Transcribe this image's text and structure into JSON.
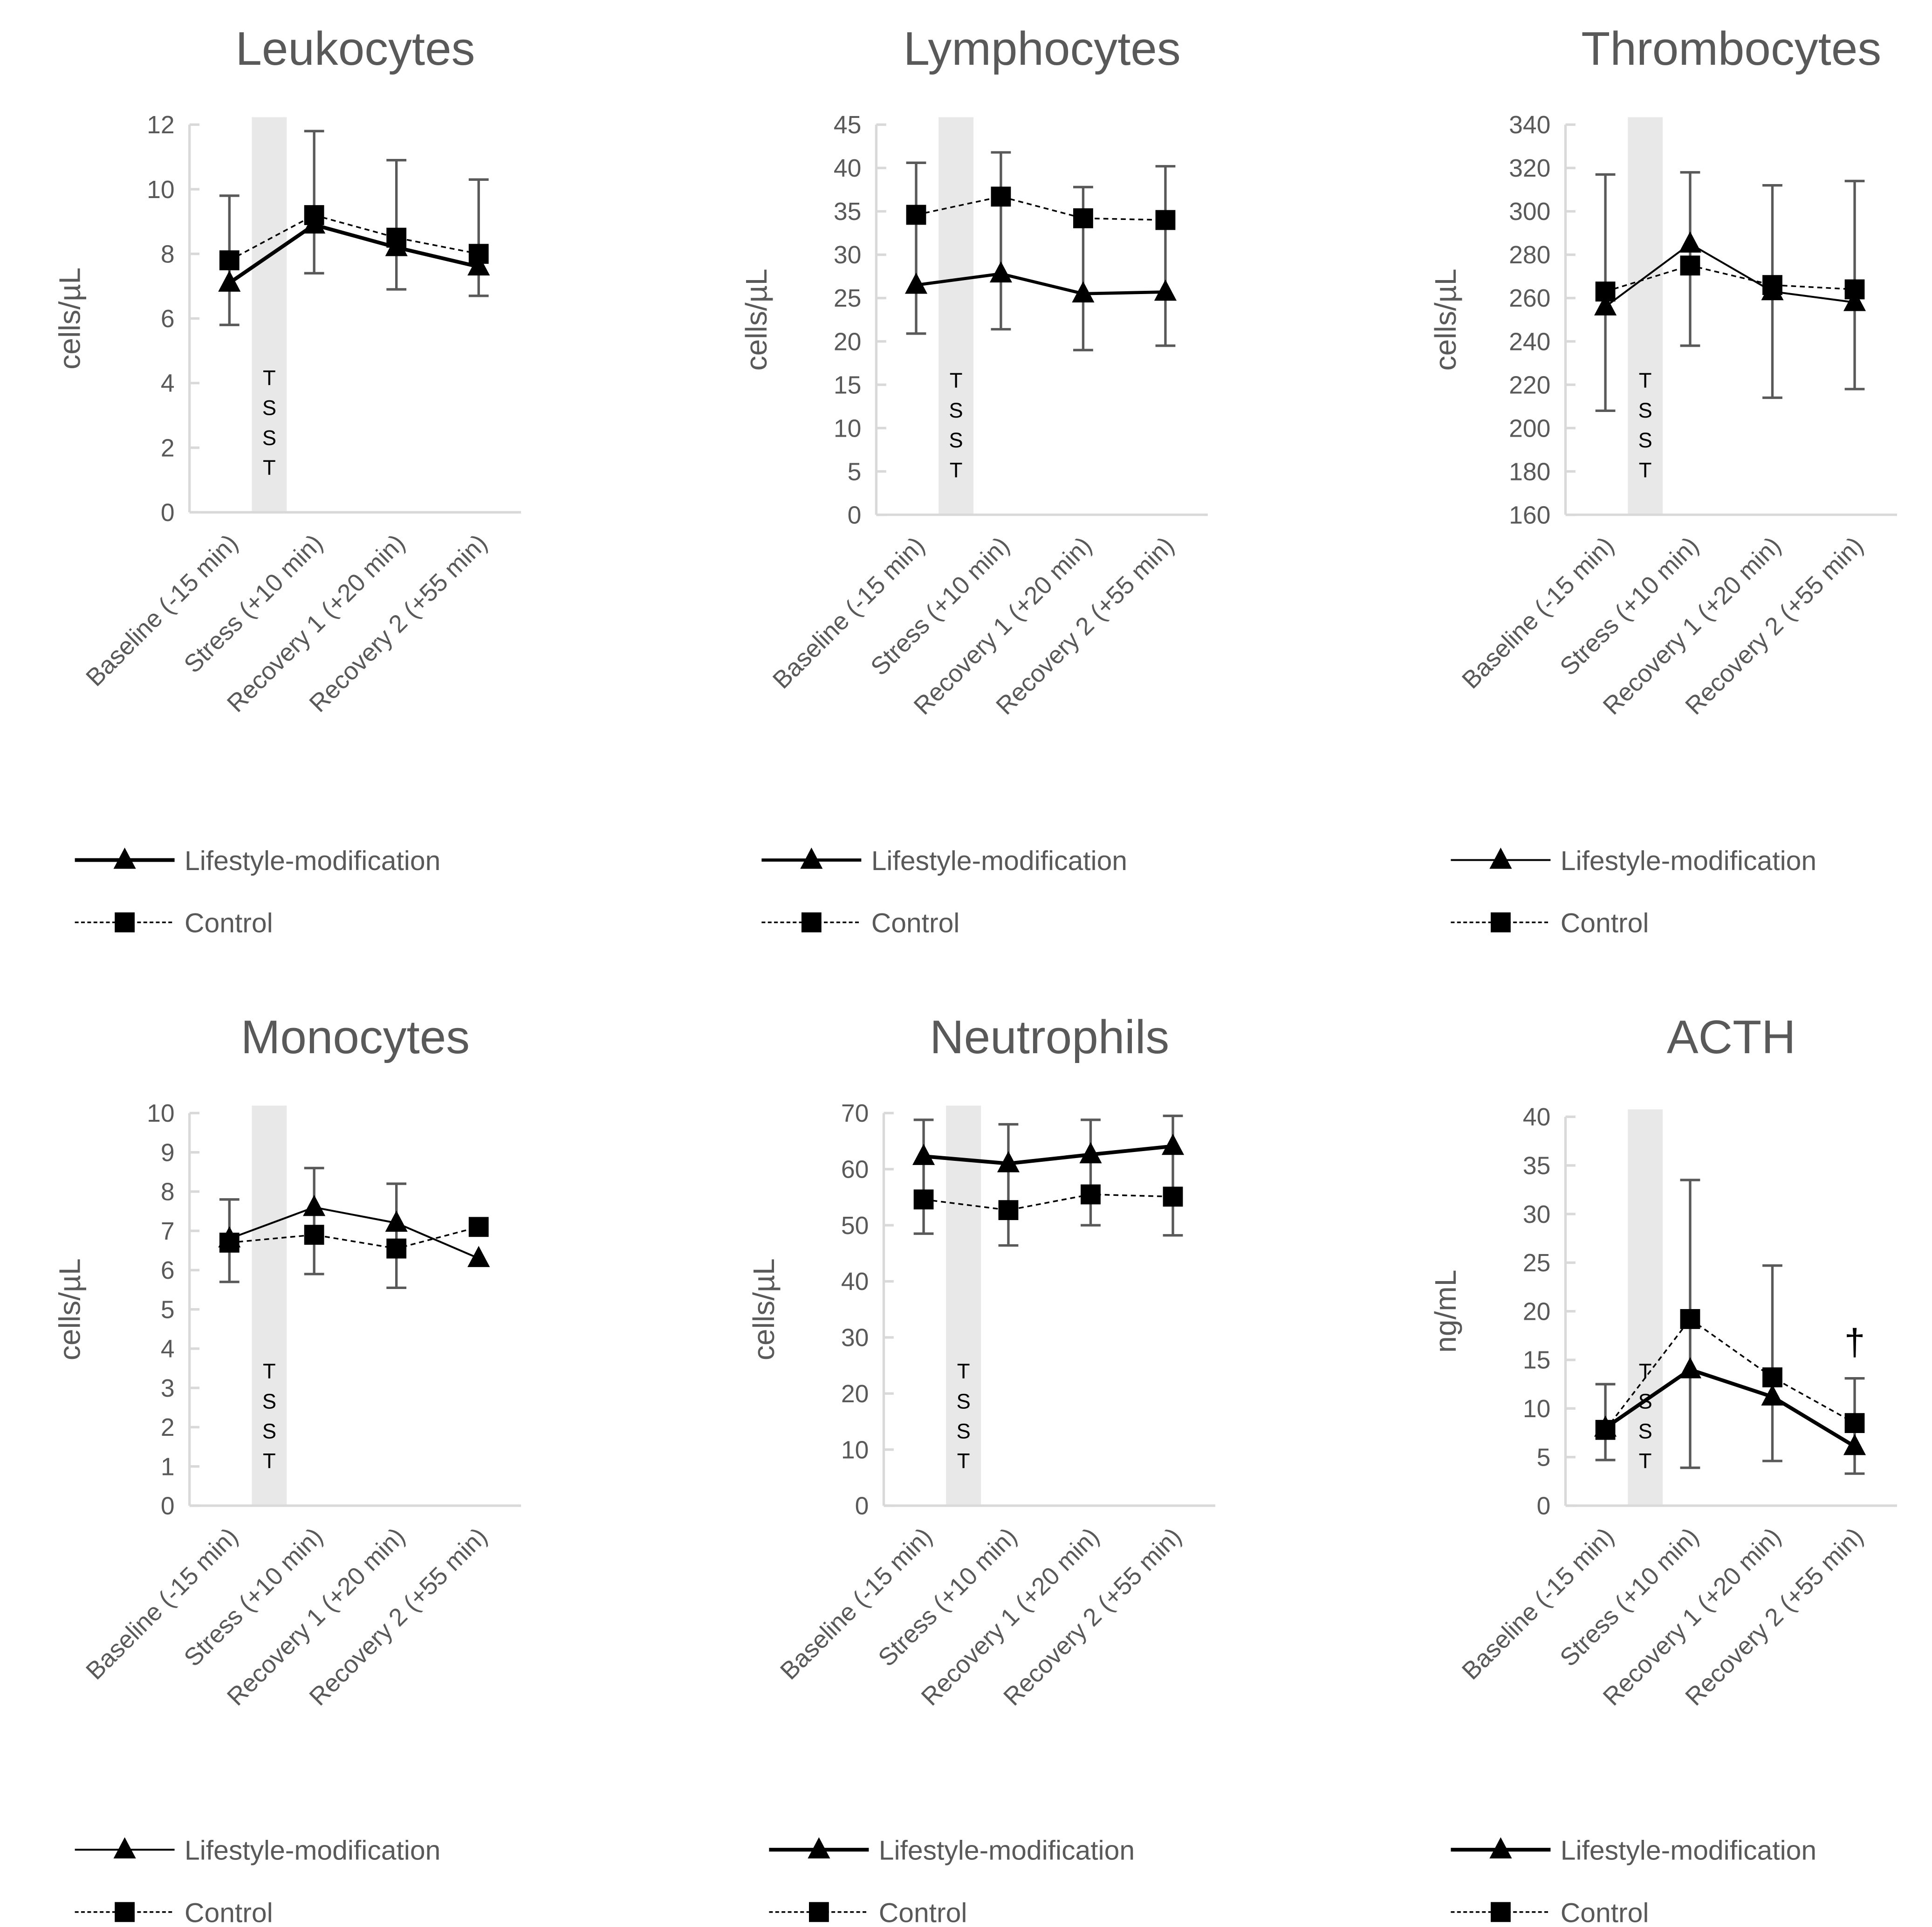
{
  "legend": {
    "lm": "Lifestyle-modification",
    "control": "Control"
  },
  "tsst_label": [
    "T",
    "S",
    "S",
    "T"
  ],
  "categories": [
    "Baseline (-15 min)",
    "Stress (+10 min)",
    "Recovery 1 (+20 min)",
    "Recovery 2 (+55 min)"
  ],
  "chart_data": [
    {
      "type": "line",
      "title": "Leukocytes",
      "ylabel": "cells/µL",
      "ylim": [
        0,
        12
      ],
      "ystep": 2,
      "yticks": [
        "0",
        "2",
        "4",
        "6",
        "8",
        "10",
        "12"
      ],
      "series": [
        {
          "name": "Lifestyle-modification",
          "values": [
            7.1,
            8.9,
            8.2,
            7.6
          ]
        },
        {
          "name": "Control",
          "values": [
            7.8,
            9.2,
            8.5,
            8.0
          ]
        }
      ],
      "error_bars": [
        [
          5.8,
          9.8
        ],
        [
          7.4,
          11.8
        ],
        [
          6.9,
          10.9
        ],
        [
          6.7,
          10.3
        ]
      ],
      "annotation": ""
    },
    {
      "type": "line",
      "title": "Lymphocytes",
      "ylabel": "cells/µL",
      "ylim": [
        0,
        45
      ],
      "ystep": 5,
      "yticks": [
        "0",
        "5",
        "10",
        "15",
        "20",
        "25",
        "30",
        "35",
        "40",
        "45"
      ],
      "series": [
        {
          "name": "Lifestyle-modification",
          "values": [
            26.5,
            27.8,
            25.5,
            25.7
          ]
        },
        {
          "name": "Control",
          "values": [
            34.6,
            36.7,
            34.2,
            34.0
          ]
        }
      ],
      "error_bars": [
        [
          20.9,
          40.6
        ],
        [
          21.4,
          41.8
        ],
        [
          19.0,
          37.8
        ],
        [
          19.5,
          40.2
        ]
      ],
      "annotation": ""
    },
    {
      "type": "line",
      "title": "Thrombocytes",
      "ylabel": "cells/µL",
      "ylim": [
        160,
        340
      ],
      "ystep": 20,
      "yticks": [
        "160",
        "180",
        "200",
        "220",
        "240",
        "260",
        "280",
        "300",
        "320",
        "340"
      ],
      "series": [
        {
          "name": "Lifestyle-modification",
          "values": [
            256,
            285,
            263,
            258
          ]
        },
        {
          "name": "Control",
          "values": [
            263,
            275,
            266,
            264
          ]
        }
      ],
      "error_bars": [
        [
          208,
          317
        ],
        [
          238,
          318
        ],
        [
          214,
          312
        ],
        [
          218,
          314
        ]
      ],
      "annotation": ""
    },
    {
      "type": "line",
      "title": "Monocytes",
      "ylabel": "cells/µL",
      "ylim": [
        0,
        10
      ],
      "ystep": 1,
      "yticks": [
        "0",
        "1",
        "2",
        "3",
        "4",
        "5",
        "6",
        "7",
        "8",
        "9",
        "10"
      ],
      "series": [
        {
          "name": "Lifestyle-modification",
          "values": [
            6.8,
            7.6,
            7.2,
            6.3
          ]
        },
        {
          "name": "Control",
          "values": [
            6.7,
            6.9,
            6.55,
            7.1
          ]
        }
      ],
      "error_bars": [
        [
          5.7,
          7.8
        ],
        [
          5.9,
          8.6
        ],
        [
          5.55,
          8.2
        ],
        null
      ],
      "annotation": ""
    },
    {
      "type": "line",
      "title": "Neutrophils",
      "ylabel": "cells/µL",
      "ylim": [
        0,
        70
      ],
      "ystep": 10,
      "yticks": [
        "0",
        "10",
        "20",
        "30",
        "40",
        "50",
        "60",
        "70"
      ],
      "series": [
        {
          "name": "Lifestyle-modification",
          "values": [
            62.3,
            61.0,
            62.6,
            64.1
          ]
        },
        {
          "name": "Control",
          "values": [
            54.6,
            52.7,
            55.5,
            55.1
          ]
        }
      ],
      "error_bars": [
        [
          48.5,
          68.8
        ],
        [
          46.4,
          68.0
        ],
        [
          50.0,
          68.8
        ],
        [
          48.2,
          69.5
        ]
      ],
      "annotation": ""
    },
    {
      "type": "line",
      "title": "ACTH",
      "ylabel": "ng/mL",
      "ylim": [
        0,
        40
      ],
      "ystep": 5,
      "yticks": [
        "0",
        "5",
        "10",
        "15",
        "20",
        "25",
        "30",
        "35",
        "40"
      ],
      "series": [
        {
          "name": "Lifestyle-modification",
          "values": [
            8.0,
            14.0,
            11.2,
            6.1
          ]
        },
        {
          "name": "Control",
          "values": [
            7.8,
            19.2,
            13.2,
            8.5
          ]
        }
      ],
      "error_bars": [
        [
          4.7,
          12.5
        ],
        [
          3.9,
          33.5
        ],
        [
          4.6,
          24.7
        ],
        [
          3.3,
          13.1
        ]
      ],
      "annotation": "†"
    }
  ]
}
